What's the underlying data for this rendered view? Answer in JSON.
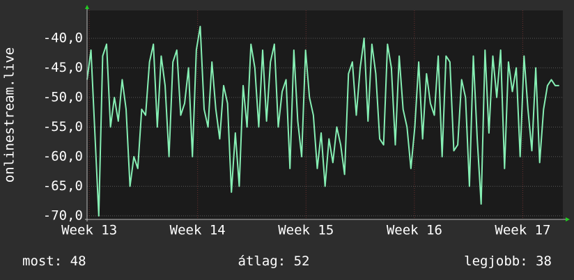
{
  "chart_data": {
    "type": "line",
    "ylabel": "onlinestream.live",
    "x": [
      12.98,
      13.016,
      13.052,
      13.088,
      13.124,
      13.16,
      13.196,
      13.232,
      13.268,
      13.304,
      13.34,
      13.376,
      13.412,
      13.448,
      13.484,
      13.52,
      13.556,
      13.592,
      13.628,
      13.664,
      13.7,
      13.736,
      13.772,
      13.808,
      13.844,
      13.88,
      13.916,
      13.952,
      13.988,
      14.024,
      14.06,
      14.096,
      14.132,
      14.168,
      14.204,
      14.24,
      14.276,
      14.312,
      14.348,
      14.384,
      14.42,
      14.456,
      14.492,
      14.528,
      14.564,
      14.6,
      14.636,
      14.672,
      14.708,
      14.744,
      14.78,
      14.816,
      14.852,
      14.888,
      14.924,
      14.96,
      14.996,
      15.032,
      15.068,
      15.104,
      15.14,
      15.176,
      15.212,
      15.248,
      15.284,
      15.32,
      15.356,
      15.392,
      15.428,
      15.464,
      15.5,
      15.536,
      15.572,
      15.608,
      15.644,
      15.68,
      15.716,
      15.752,
      15.788,
      15.824,
      15.86,
      15.896,
      15.932,
      15.968,
      16.004,
      16.04,
      16.076,
      16.112,
      16.148,
      16.184,
      16.22,
      16.256,
      16.292,
      16.328,
      16.364,
      16.4,
      16.436,
      16.472,
      16.508,
      16.544,
      16.58,
      16.616,
      16.652,
      16.688,
      16.724,
      16.76,
      16.796,
      16.832,
      16.868,
      16.904,
      16.94,
      16.976,
      17.012,
      17.048,
      17.084,
      17.12,
      17.156,
      17.192,
      17.228,
      17.264,
      17.3,
      17.336
    ],
    "series": [
      {
        "color": "#86efb4",
        "values": [
          -47,
          -42,
          -56,
          -70,
          -43,
          -41,
          -55,
          -50,
          -54,
          -47,
          -52,
          -65,
          -60,
          -62,
          -52,
          -53,
          -44,
          -41,
          -55,
          -43,
          -48,
          -60,
          -44,
          -42,
          -53,
          -51,
          -45,
          -60,
          -42,
          -38,
          -52,
          -55,
          -44,
          -52,
          -57,
          -48,
          -51,
          -66,
          -56,
          -65,
          -48,
          -55,
          -41,
          -45,
          -55,
          -42,
          -54,
          -44,
          -41,
          -55,
          -49,
          -47,
          -62,
          -42,
          -54,
          -60,
          -42,
          -50,
          -53,
          -62,
          -56,
          -65,
          -57,
          -61,
          -55,
          -58,
          -63,
          -46,
          -44,
          -53,
          -45,
          -40,
          -54,
          -41,
          -46,
          -57,
          -58,
          -41,
          -45,
          -58,
          -43,
          -52,
          -55,
          -62,
          -55,
          -44,
          -57,
          -46,
          -51,
          -53,
          -43,
          -60,
          -43,
          -44,
          -59,
          -58,
          -47,
          -50,
          -65,
          -43,
          -57,
          -68,
          -42,
          -56,
          -43,
          -50,
          -42,
          -62,
          -44,
          -49,
          -45,
          -60,
          -43,
          -52,
          -59,
          -45,
          -61,
          -52,
          -48,
          -47,
          -48,
          -48
        ]
      }
    ],
    "xlim": [
      12.98,
      17.37
    ],
    "xticks": [
      {
        "value": 13,
        "label": "Week 13"
      },
      {
        "value": 14,
        "label": "Week 14"
      },
      {
        "value": 15,
        "label": "Week 15"
      },
      {
        "value": 16,
        "label": "Week 16"
      },
      {
        "value": 17,
        "label": "Week 17"
      }
    ],
    "ylim": [
      -70.6,
      -35.3
    ],
    "yticks": [
      {
        "value": -70,
        "label": "-70,0"
      },
      {
        "value": -65,
        "label": "-65,0"
      },
      {
        "value": -60,
        "label": "-60,0"
      },
      {
        "value": -55,
        "label": "-55,0"
      },
      {
        "value": -50,
        "label": "-50,0"
      },
      {
        "value": -45,
        "label": "-45,0"
      },
      {
        "value": -40,
        "label": "-40,0"
      }
    ],
    "grid": true,
    "stats": [
      {
        "label": "most:",
        "value": 48
      },
      {
        "label": "átlag:",
        "value": 52
      },
      {
        "label": "legjobb:",
        "value": 38
      }
    ]
  }
}
